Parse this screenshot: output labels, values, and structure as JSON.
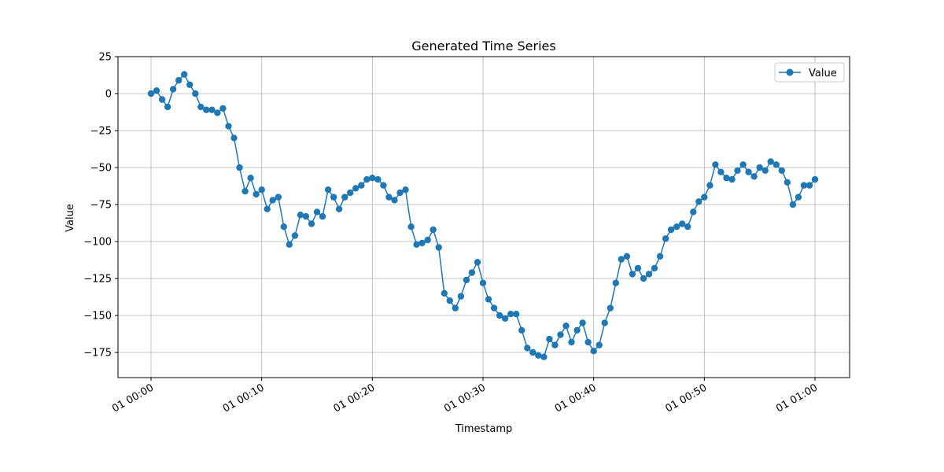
{
  "chart_data": {
    "type": "line",
    "title": "Generated Time Series",
    "xlabel": "Timestamp",
    "ylabel": "Value",
    "x_range": [
      "01 00:00",
      "01 01:00"
    ],
    "ylim": [
      -192,
      25
    ],
    "grid": true,
    "legend_position": "top-right",
    "marker": "circle",
    "y_ticks": [
      25,
      0,
      -25,
      -50,
      -75,
      -100,
      -125,
      -150,
      -175
    ],
    "y_tick_labels": [
      "25",
      "0",
      "−25",
      "−50",
      "−75",
      "−100",
      "−125",
      "−150",
      "−175"
    ],
    "x_ticks_minutes": [
      0,
      10,
      20,
      30,
      40,
      50,
      60
    ],
    "x_tick_labels": [
      "01 00:00",
      "01 00:10",
      "01 00:20",
      "01 00:30",
      "01 00:40",
      "01 00:50",
      "01 01:00"
    ],
    "series": [
      {
        "name": "Value",
        "color": "#1f77b4",
        "points": [
          [
            "01 00:00:00",
            0
          ],
          [
            "01 00:00:30",
            2
          ],
          [
            "01 00:01:00",
            -4
          ],
          [
            "01 00:01:30",
            -9
          ],
          [
            "01 00:02:00",
            3
          ],
          [
            "01 00:02:30",
            9
          ],
          [
            "01 00:03:00",
            13
          ],
          [
            "01 00:03:30",
            6
          ],
          [
            "01 00:04:00",
            0
          ],
          [
            "01 00:04:30",
            -9
          ],
          [
            "01 00:05:00",
            -11
          ],
          [
            "01 00:05:30",
            -11
          ],
          [
            "01 00:06:00",
            -13
          ],
          [
            "01 00:06:30",
            -10
          ],
          [
            "01 00:07:00",
            -22
          ],
          [
            "01 00:07:30",
            -30
          ],
          [
            "01 00:08:00",
            -50
          ],
          [
            "01 00:08:30",
            -66
          ],
          [
            "01 00:09:00",
            -57
          ],
          [
            "01 00:09:30",
            -68
          ],
          [
            "01 00:10:00",
            -65
          ],
          [
            "01 00:10:30",
            -78
          ],
          [
            "01 00:11:00",
            -72
          ],
          [
            "01 00:11:30",
            -70
          ],
          [
            "01 00:12:00",
            -90
          ],
          [
            "01 00:12:30",
            -102
          ],
          [
            "01 00:13:00",
            -96
          ],
          [
            "01 00:13:30",
            -82
          ],
          [
            "01 00:14:00",
            -83
          ],
          [
            "01 00:14:30",
            -88
          ],
          [
            "01 00:15:00",
            -80
          ],
          [
            "01 00:15:30",
            -83
          ],
          [
            "01 00:16:00",
            -65
          ],
          [
            "01 00:16:30",
            -70
          ],
          [
            "01 00:17:00",
            -78
          ],
          [
            "01 00:17:30",
            -70
          ],
          [
            "01 00:18:00",
            -67
          ],
          [
            "01 00:18:30",
            -64
          ],
          [
            "01 00:19:00",
            -62
          ],
          [
            "01 00:19:30",
            -58
          ],
          [
            "01 00:20:00",
            -57
          ],
          [
            "01 00:20:30",
            -58
          ],
          [
            "01 00:21:00",
            -62
          ],
          [
            "01 00:21:30",
            -70
          ],
          [
            "01 00:22:00",
            -72
          ],
          [
            "01 00:22:30",
            -67
          ],
          [
            "01 00:23:00",
            -65
          ],
          [
            "01 00:23:30",
            -90
          ],
          [
            "01 00:24:00",
            -102
          ],
          [
            "01 00:24:30",
            -101
          ],
          [
            "01 00:25:00",
            -99
          ],
          [
            "01 00:25:30",
            -92
          ],
          [
            "01 00:26:00",
            -104
          ],
          [
            "01 00:26:30",
            -135
          ],
          [
            "01 00:27:00",
            -140
          ],
          [
            "01 00:27:30",
            -145
          ],
          [
            "01 00:28:00",
            -137
          ],
          [
            "01 00:28:30",
            -126
          ],
          [
            "01 00:29:00",
            -121
          ],
          [
            "01 00:29:30",
            -114
          ],
          [
            "01 00:30:00",
            -128
          ],
          [
            "01 00:30:30",
            -139
          ],
          [
            "01 00:31:00",
            -145
          ],
          [
            "01 00:31:30",
            -150
          ],
          [
            "01 00:32:00",
            -152
          ],
          [
            "01 00:32:30",
            -149
          ],
          [
            "01 00:33:00",
            -149
          ],
          [
            "01 00:33:30",
            -160
          ],
          [
            "01 00:34:00",
            -172
          ],
          [
            "01 00:34:30",
            -175
          ],
          [
            "01 00:35:00",
            -177
          ],
          [
            "01 00:35:30",
            -178
          ],
          [
            "01 00:36:00",
            -166
          ],
          [
            "01 00:36:30",
            -170
          ],
          [
            "01 00:37:00",
            -163
          ],
          [
            "01 00:37:30",
            -157
          ],
          [
            "01 00:38:00",
            -168
          ],
          [
            "01 00:38:30",
            -160
          ],
          [
            "01 00:39:00",
            -155
          ],
          [
            "01 00:39:30",
            -168
          ],
          [
            "01 00:40:00",
            -174
          ],
          [
            "01 00:40:30",
            -170
          ],
          [
            "01 00:41:00",
            -155
          ],
          [
            "01 00:41:30",
            -145
          ],
          [
            "01 00:42:00",
            -128
          ],
          [
            "01 00:42:30",
            -112
          ],
          [
            "01 00:43:00",
            -110
          ],
          [
            "01 00:43:30",
            -122
          ],
          [
            "01 00:44:00",
            -118
          ],
          [
            "01 00:44:30",
            -125
          ],
          [
            "01 00:45:00",
            -122
          ],
          [
            "01 00:45:30",
            -118
          ],
          [
            "01 00:46:00",
            -110
          ],
          [
            "01 00:46:30",
            -98
          ],
          [
            "01 00:47:00",
            -92
          ],
          [
            "01 00:47:30",
            -90
          ],
          [
            "01 00:48:00",
            -88
          ],
          [
            "01 00:48:30",
            -90
          ],
          [
            "01 00:49:00",
            -80
          ],
          [
            "01 00:49:30",
            -73
          ],
          [
            "01 00:50:00",
            -70
          ],
          [
            "01 00:50:30",
            -62
          ],
          [
            "01 00:51:00",
            -48
          ],
          [
            "01 00:51:30",
            -53
          ],
          [
            "01 00:52:00",
            -57
          ],
          [
            "01 00:52:30",
            -58
          ],
          [
            "01 00:53:00",
            -52
          ],
          [
            "01 00:53:30",
            -48
          ],
          [
            "01 00:54:00",
            -53
          ],
          [
            "01 00:54:30",
            -56
          ],
          [
            "01 00:55:00",
            -50
          ],
          [
            "01 00:55:30",
            -52
          ],
          [
            "01 00:56:00",
            -46
          ],
          [
            "01 00:56:30",
            -48
          ],
          [
            "01 00:57:00",
            -52
          ],
          [
            "01 00:57:30",
            -60
          ],
          [
            "01 00:58:00",
            -75
          ],
          [
            "01 00:58:30",
            -70
          ],
          [
            "01 00:59:00",
            -62
          ],
          [
            "01 00:59:30",
            -62
          ],
          [
            "01 01:00:00",
            -58
          ]
        ]
      }
    ]
  }
}
